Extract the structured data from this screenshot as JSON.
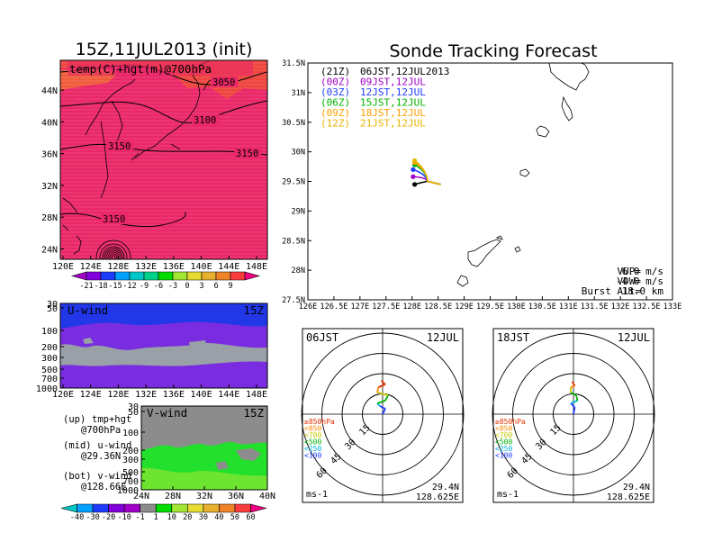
{
  "left_title": "15Z,11JUL2013 (init)",
  "main_title": "Sonde Tracking Forecast",
  "colors": {
    "warm_scale": [
      "#a000c8",
      "#8200dc",
      "#1e3cff",
      "#00a0ff",
      "#00c8c8",
      "#00d28c",
      "#00dc00",
      "#a0e632",
      "#e6dc32",
      "#e6af2d",
      "#f08228",
      "#fa3c3c",
      "#f00082"
    ],
    "wind_scale": [
      "#00c8c8",
      "#00a0ff",
      "#1e3cff",
      "#8200dc",
      "#a000c8",
      "#8c8c8c",
      "#00dc00",
      "#a0e632",
      "#e6dc32",
      "#e6af2d",
      "#f08228",
      "#fa3c3c",
      "#f00082"
    ],
    "map_fill": "#ea2868",
    "map_fill_north": "#f04a3c",
    "uwind_top": "#2238e8",
    "uwind_mid": "#7a2ce0",
    "uwind_low": "#9aa0a8",
    "vwind_gray": "#8c8c8c",
    "vwind_green": "#22e02c"
  },
  "map_panel": {
    "label": "temp(C)+hgt(m)@700hPa",
    "contours": [
      "3050",
      "3100",
      "3150",
      "3150",
      "3150"
    ],
    "x_ticks": [
      "120E",
      "124E",
      "128E",
      "132E",
      "136E",
      "140E",
      "144E",
      "148E"
    ],
    "y_ticks": [
      "44N",
      "40N",
      "36N",
      "32N",
      "28N",
      "24N"
    ]
  },
  "temp_colorbar": {
    "labels": [
      "-21",
      "-18",
      "-15",
      "-12",
      "-9",
      "-6",
      "-3",
      "0",
      "3",
      "6",
      "9"
    ]
  },
  "uwind_panel": {
    "label": "U-wind",
    "time": "15Z",
    "y_ticks": [
      "30",
      "50",
      "100",
      "200",
      "300",
      "500",
      "700",
      "1000"
    ],
    "x_ticks": [
      "120E",
      "124E",
      "128E",
      "132E",
      "136E",
      "140E",
      "144E",
      "148E"
    ]
  },
  "vwind_panel": {
    "label": "V-wind",
    "time": "15Z",
    "y_ticks": [
      "30",
      "50",
      "100",
      "200",
      "300",
      "500",
      "700",
      "1000"
    ],
    "x_ticks": [
      "24N",
      "28N",
      "32N",
      "36N",
      "40N"
    ]
  },
  "legend_left": [
    {
      "k": "(up)",
      "v": "tmp+hgt"
    },
    {
      "k": "",
      "v": "@700hPa"
    },
    {
      "k": "(mid)",
      "v": "u-wind"
    },
    {
      "k": "",
      "v": "@29.36N"
    },
    {
      "k": "(bot)",
      "v": "v-wind"
    },
    {
      "k": "",
      "v": "@128.66E"
    }
  ],
  "wind_colorbar": {
    "labels": [
      "-40",
      "-30",
      "-20",
      "-10",
      "-1",
      "1",
      "10",
      "20",
      "30",
      "40",
      "50",
      "60"
    ]
  },
  "track_panel": {
    "x_ticks": [
      "126E",
      "126.5E",
      "127E",
      "127.5E",
      "128E",
      "128.5E",
      "129E",
      "129.5E",
      "130E",
      "130.5E",
      "131E",
      "131.5E",
      "132E",
      "132.5E",
      "133E"
    ],
    "y_ticks": [
      "31.5N",
      "31N",
      "30.5N",
      "30N",
      "29.5N",
      "29N",
      "28.5N",
      "28N",
      "27.5N"
    ],
    "legend": [
      {
        "code": "(21Z)",
        "label": "06JST,12JUL2013",
        "color": "#000000"
      },
      {
        "code": "(00Z)",
        "label": "09JST,12JUL",
        "color": "#a000c8"
      },
      {
        "code": "(03Z)",
        "label": "12JST,12JUL",
        "color": "#1e3cff"
      },
      {
        "code": "(06Z)",
        "label": "15JST,12JUL",
        "color": "#00b400"
      },
      {
        "code": "(09Z)",
        "label": "18JST,12JUL",
        "color": "#ffa000"
      },
      {
        "code": "(12Z)",
        "label": "21JST,12JUL",
        "color": "#e6b400"
      }
    ],
    "tracks": [
      {
        "color": "#000000",
        "launch": [
          128.3,
          29.5
        ],
        "burst": [
          128.05,
          29.45
        ]
      },
      {
        "color": "#a000c8",
        "launch": [
          128.3,
          29.5
        ],
        "burst": [
          128.02,
          29.58
        ]
      },
      {
        "color": "#1e3cff",
        "launch": [
          128.3,
          29.5
        ],
        "burst": [
          128.02,
          29.7
        ]
      },
      {
        "color": "#00b400",
        "launch": [
          128.3,
          29.5
        ],
        "burst": [
          128.05,
          29.78
        ]
      },
      {
        "color": "#ffa000",
        "launch": [
          128.3,
          29.5
        ],
        "burst": [
          128.05,
          29.82
        ]
      },
      {
        "color": "#e6b400",
        "launch": [
          128.3,
          29.5
        ],
        "burst": [
          128.05,
          29.85
        ]
      }
    ],
    "info": [
      {
        "k": "VUP=",
        "v": "6.0 m/s"
      },
      {
        "k": "VDW=",
        "v": "-4.0 m/s"
      },
      {
        "k": "Burst Alt=",
        "v": "18.0 km"
      }
    ]
  },
  "hodographs": [
    {
      "time": "06JST",
      "date": "12JUL",
      "ring_labels": [
        "15",
        "30",
        "45",
        "60"
      ],
      "legend": [
        "≥850hPa",
        "<850",
        "<700",
        "<500",
        "<250",
        "<100"
      ],
      "legend_colors": [
        "#e63200",
        "#ff8c00",
        "#c8c800",
        "#00b400",
        "#00b4e6",
        "#1e3cff"
      ],
      "lat": "29.4N",
      "lon": "128.625E",
      "unit": "ms-1",
      "trace": [
        [
          0,
          0
        ],
        [
          2,
          4
        ],
        [
          -2,
          6
        ],
        [
          -4,
          8
        ],
        [
          2,
          10
        ],
        [
          4,
          14
        ],
        [
          -4,
          16
        ],
        [
          -3,
          20
        ],
        [
          2,
          22
        ],
        [
          -1,
          25
        ]
      ]
    },
    {
      "time": "18JST",
      "date": "12JUL",
      "ring_labels": [
        "15",
        "30",
        "45",
        "60"
      ],
      "legend": [
        "≥850hPa",
        "<850",
        "<700",
        "<500",
        "<250",
        "<100"
      ],
      "legend_colors": [
        "#e63200",
        "#ff8c00",
        "#c8c800",
        "#00b400",
        "#00b4e6",
        "#1e3cff"
      ],
      "lat": "29.4N",
      "lon": "128.625E",
      "unit": "ms-1",
      "trace": [
        [
          0,
          0
        ],
        [
          1,
          5
        ],
        [
          -2,
          8
        ],
        [
          3,
          10
        ],
        [
          2,
          14
        ],
        [
          -2,
          16
        ],
        [
          -2,
          20
        ],
        [
          1,
          21
        ],
        [
          -1,
          24
        ]
      ]
    }
  ]
}
